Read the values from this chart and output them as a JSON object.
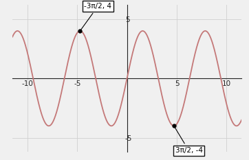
{
  "xlim": [
    -11.5,
    11.5
  ],
  "ylim": [
    -6.2,
    6.2
  ],
  "xticks": [
    -10,
    -5,
    5,
    10
  ],
  "yticks": [
    -5,
    5
  ],
  "amplitude": 4,
  "frequency": 1,
  "line_color": "#c47878",
  "line_width": 1.3,
  "point1_x": -4.71238898,
  "point1_y": 4,
  "point1_label": "-3π/2, 4",
  "point2_x": 4.71238898,
  "point2_y": -4,
  "point2_label": "3π/2, -4",
  "background_color": "#f0f0f0",
  "grid_color": "#d0d0d0",
  "annotation_box_color": "#ffffff",
  "annotation_box_edge": "#111111",
  "annotation_fontsize": 7.5,
  "axis_color": "#222222",
  "tick_fontsize": 7.5
}
